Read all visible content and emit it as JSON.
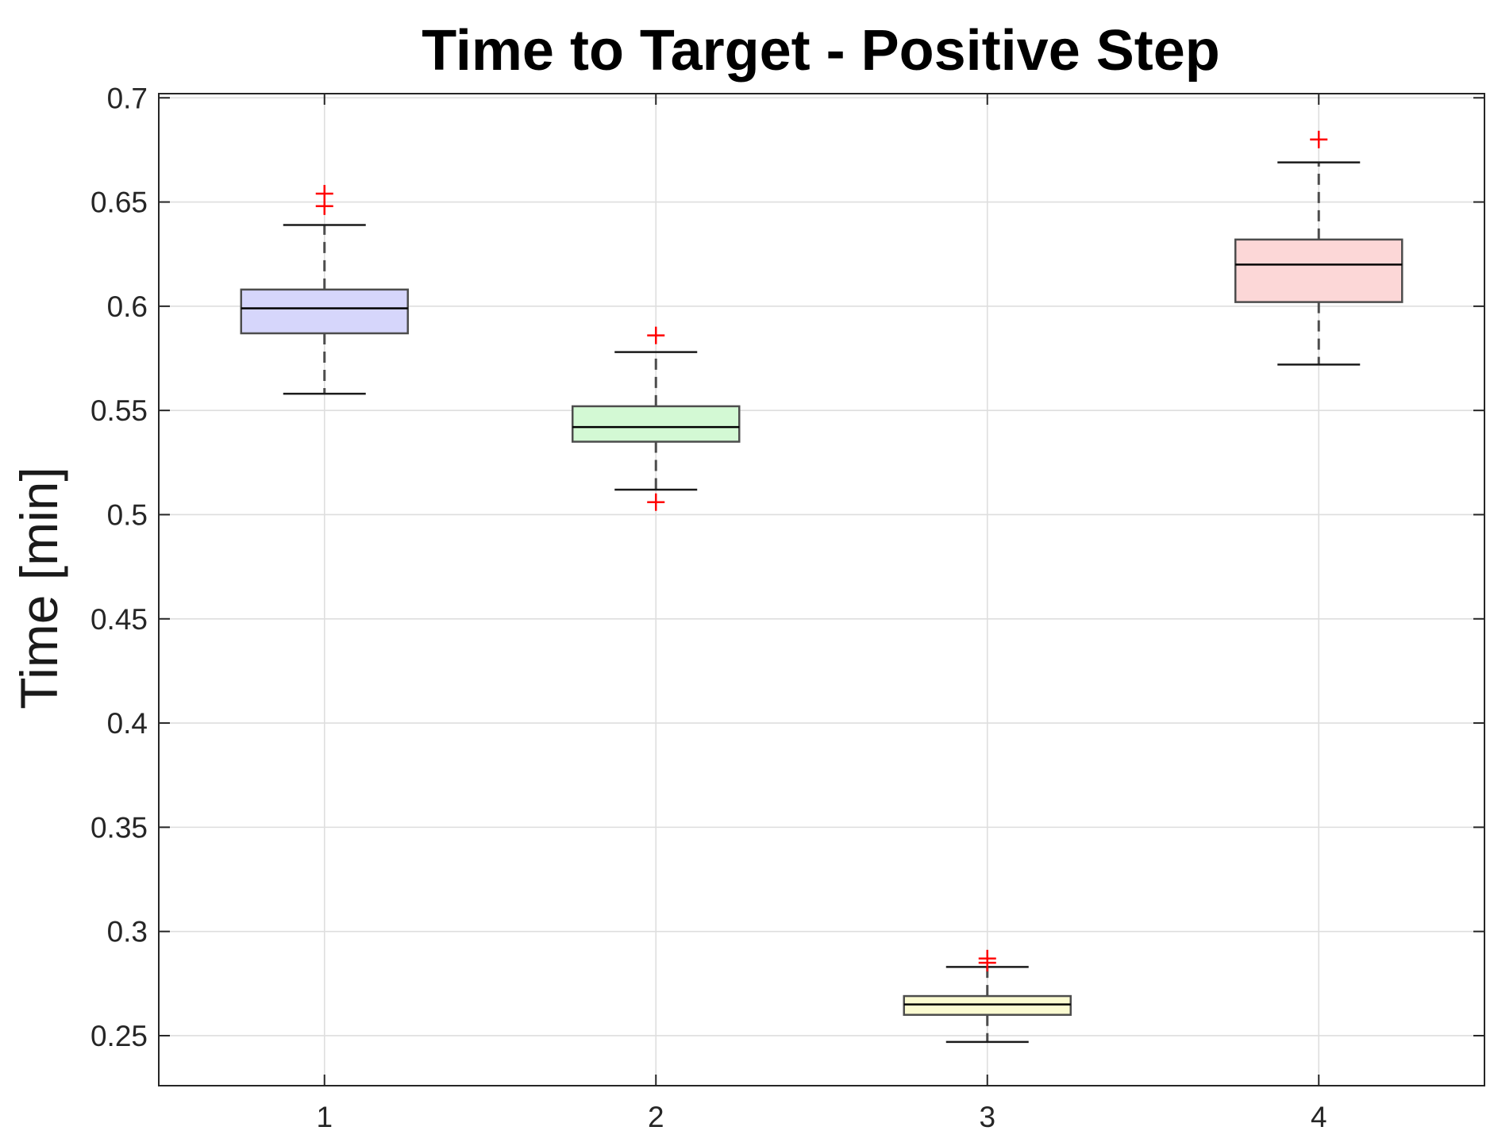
{
  "chart_data": {
    "type": "box",
    "title": "Time to Target - Positive Step",
    "xlabel": "",
    "ylabel": "Time [min]",
    "ylim": [
      0.226,
      0.702
    ],
    "xlim": [
      0.5,
      4.5
    ],
    "yticks": [
      0.25,
      0.3,
      0.35,
      0.4,
      0.45,
      0.5,
      0.55,
      0.6,
      0.65,
      0.7
    ],
    "ytick_labels": [
      "0.25",
      "0.3",
      "0.35",
      "0.4",
      "0.45",
      "0.5",
      "0.55",
      "0.6",
      "0.65",
      "0.7"
    ],
    "categories": [
      "1",
      "2",
      "3",
      "4"
    ],
    "grid": true,
    "outlier_marker": "+",
    "outlier_color": "#ff0000",
    "median_color": "#000000",
    "box_edge_color": "#4d4d4d",
    "boxes": [
      {
        "category": "1",
        "whisker_low": 0.558,
        "q1": 0.587,
        "median": 0.599,
        "q3": 0.608,
        "whisker_high": 0.639,
        "outliers": [
          0.648,
          0.654
        ],
        "fill": "#d6d6fb"
      },
      {
        "category": "2",
        "whisker_low": 0.512,
        "q1": 0.535,
        "median": 0.542,
        "q3": 0.552,
        "whisker_high": 0.578,
        "outliers": [
          0.506,
          0.586
        ],
        "fill": "#d3f9d4"
      },
      {
        "category": "3",
        "whisker_low": 0.247,
        "q1": 0.26,
        "median": 0.265,
        "q3": 0.269,
        "whisker_high": 0.283,
        "outliers": [
          0.285,
          0.287
        ],
        "fill": "#fbfbd1"
      },
      {
        "category": "4",
        "whisker_low": 0.572,
        "q1": 0.602,
        "median": 0.62,
        "q3": 0.632,
        "whisker_high": 0.669,
        "outliers": [
          0.68
        ],
        "fill": "#fcd7d7"
      }
    ]
  }
}
